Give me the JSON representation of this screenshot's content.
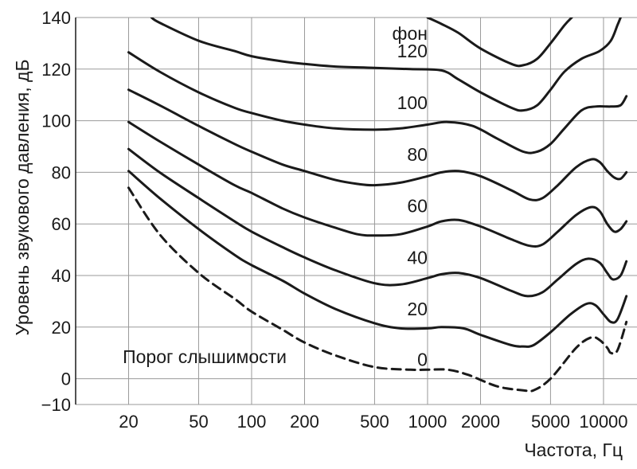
{
  "chart_data": {
    "type": "line",
    "xlabel": "Частота, Гц",
    "ylabel": "Уровень звукового давления, дБ",
    "x_scale": "log",
    "x_ticks": [
      20,
      50,
      100,
      200,
      500,
      1000,
      2000,
      5000,
      10000
    ],
    "x_tick_labels": [
      "20",
      "50",
      "100",
      "200",
      "500",
      "1000",
      "2000",
      "5000",
      "10000"
    ],
    "y_ticks": [
      -10,
      0,
      20,
      40,
      60,
      80,
      100,
      120,
      140
    ],
    "y_tick_labels": [
      "−10",
      "0",
      "20",
      "40",
      "60",
      "80",
      "100",
      "120",
      "140"
    ],
    "ylim": [
      -10,
      140
    ],
    "xlim": [
      10,
      15500
    ],
    "grid": true,
    "phon_unit": "фон",
    "threshold_label": "Порог слышимости",
    "series": [
      {
        "name": "0",
        "style": "dashed",
        "points": [
          [
            20,
            74
          ],
          [
            30,
            56
          ],
          [
            50,
            41
          ],
          [
            80,
            31
          ],
          [
            100,
            26
          ],
          [
            150,
            19
          ],
          [
            200,
            14
          ],
          [
            300,
            9
          ],
          [
            500,
            4.5
          ],
          [
            800,
            3.5
          ],
          [
            1000,
            3.5
          ],
          [
            1300,
            3.5
          ],
          [
            1700,
            1.5
          ],
          [
            2500,
            -3
          ],
          [
            3500,
            -4.5
          ],
          [
            4000,
            -4.5
          ],
          [
            5000,
            0
          ],
          [
            7000,
            12
          ],
          [
            8500,
            16
          ],
          [
            9500,
            15
          ],
          [
            10500,
            12
          ],
          [
            11000,
            10
          ],
          [
            12000,
            11
          ],
          [
            13500,
            22
          ]
        ]
      },
      {
        "name": "20",
        "style": "solid",
        "points": [
          [
            20,
            80.5
          ],
          [
            30,
            70
          ],
          [
            50,
            58
          ],
          [
            80,
            48
          ],
          [
            100,
            44
          ],
          [
            150,
            38
          ],
          [
            200,
            33
          ],
          [
            300,
            27
          ],
          [
            500,
            21.5
          ],
          [
            700,
            19.5
          ],
          [
            1000,
            19.5
          ],
          [
            1200,
            20
          ],
          [
            1600,
            19.5
          ],
          [
            2000,
            17
          ],
          [
            3000,
            13
          ],
          [
            3500,
            12.5
          ],
          [
            4000,
            13
          ],
          [
            5000,
            18
          ],
          [
            6500,
            25
          ],
          [
            8000,
            29
          ],
          [
            9000,
            28.5
          ],
          [
            10000,
            25
          ],
          [
            11000,
            22
          ],
          [
            12000,
            23
          ],
          [
            13500,
            32
          ]
        ]
      },
      {
        "name": "40",
        "style": "solid",
        "points": [
          [
            20,
            89
          ],
          [
            30,
            80
          ],
          [
            50,
            70
          ],
          [
            80,
            61
          ],
          [
            100,
            57
          ],
          [
            150,
            51
          ],
          [
            200,
            47
          ],
          [
            300,
            42
          ],
          [
            500,
            37
          ],
          [
            700,
            36.5
          ],
          [
            1000,
            39
          ],
          [
            1200,
            40.5
          ],
          [
            1500,
            41
          ],
          [
            2000,
            39
          ],
          [
            3000,
            34
          ],
          [
            3700,
            32
          ],
          [
            4500,
            33.5
          ],
          [
            5500,
            38.5
          ],
          [
            7000,
            44.5
          ],
          [
            8200,
            46.5
          ],
          [
            9500,
            45
          ],
          [
            10500,
            41
          ],
          [
            11300,
            38.5
          ],
          [
            12500,
            40
          ],
          [
            13500,
            45.5
          ]
        ]
      },
      {
        "name": "60",
        "style": "solid",
        "points": [
          [
            20,
            99.5
          ],
          [
            30,
            92
          ],
          [
            50,
            83
          ],
          [
            80,
            75
          ],
          [
            100,
            72
          ],
          [
            150,
            66
          ],
          [
            200,
            62.5
          ],
          [
            300,
            58.5
          ],
          [
            400,
            56
          ],
          [
            500,
            55.5
          ],
          [
            700,
            56
          ],
          [
            1000,
            59
          ],
          [
            1200,
            61
          ],
          [
            1500,
            61.5
          ],
          [
            2000,
            59
          ],
          [
            3000,
            54
          ],
          [
            3800,
            51.5
          ],
          [
            4500,
            52
          ],
          [
            5500,
            57
          ],
          [
            7000,
            63.5
          ],
          [
            8500,
            66.5
          ],
          [
            9500,
            65
          ],
          [
            10500,
            60
          ],
          [
            11500,
            57
          ],
          [
            12500,
            58
          ],
          [
            13500,
            61
          ]
        ]
      },
      {
        "name": "80",
        "style": "solid",
        "points": [
          [
            20,
            112
          ],
          [
            30,
            106
          ],
          [
            50,
            98
          ],
          [
            80,
            91
          ],
          [
            100,
            88
          ],
          [
            150,
            83
          ],
          [
            200,
            80.5
          ],
          [
            300,
            77
          ],
          [
            400,
            75.5
          ],
          [
            500,
            75
          ],
          [
            700,
            76
          ],
          [
            1000,
            78.5
          ],
          [
            1200,
            80
          ],
          [
            1500,
            80.5
          ],
          [
            2000,
            78.5
          ],
          [
            3000,
            73
          ],
          [
            3800,
            69.5
          ],
          [
            4500,
            70
          ],
          [
            5500,
            75
          ],
          [
            7000,
            82
          ],
          [
            8500,
            85
          ],
          [
            9500,
            84
          ],
          [
            10500,
            80.5
          ],
          [
            11500,
            78
          ],
          [
            12500,
            77.5
          ],
          [
            13500,
            80
          ]
        ]
      },
      {
        "name": "100",
        "style": "solid",
        "points": [
          [
            20,
            126.5
          ],
          [
            30,
            119
          ],
          [
            50,
            111
          ],
          [
            80,
            105
          ],
          [
            100,
            103
          ],
          [
            150,
            100
          ],
          [
            200,
            98.5
          ],
          [
            300,
            97
          ],
          [
            500,
            96.5
          ],
          [
            700,
            97
          ],
          [
            1000,
            98.5
          ],
          [
            1300,
            99.5
          ],
          [
            1800,
            98
          ],
          [
            2500,
            93
          ],
          [
            3500,
            88
          ],
          [
            4200,
            88
          ],
          [
            5000,
            91
          ],
          [
            6000,
            97
          ],
          [
            7500,
            104
          ],
          [
            9000,
            105.5
          ],
          [
            11000,
            105.5
          ],
          [
            12500,
            106
          ],
          [
            13500,
            109.5
          ]
        ]
      },
      {
        "name": "120",
        "style": "solid",
        "points": [
          [
            27,
            140
          ],
          [
            30,
            138
          ],
          [
            50,
            131
          ],
          [
            80,
            127
          ],
          [
            100,
            125
          ],
          [
            150,
            123
          ],
          [
            200,
            122
          ],
          [
            300,
            121
          ],
          [
            500,
            120.5
          ],
          [
            800,
            120
          ],
          [
            1200,
            119.5
          ],
          [
            1500,
            116
          ],
          [
            2000,
            111
          ],
          [
            3000,
            105
          ],
          [
            3500,
            104
          ],
          [
            4200,
            106
          ],
          [
            5000,
            112
          ],
          [
            6000,
            119
          ],
          [
            7500,
            124
          ],
          [
            9500,
            127
          ],
          [
            11000,
            131
          ],
          [
            12000,
            137
          ],
          [
            12500,
            140
          ]
        ]
      },
      {
        "name": "",
        "style": "solid",
        "points": [
          [
            1000,
            140
          ],
          [
            1200,
            137.5
          ],
          [
            1500,
            134
          ],
          [
            2000,
            128
          ],
          [
            3000,
            122
          ],
          [
            3500,
            121.5
          ],
          [
            4200,
            124
          ],
          [
            5000,
            130
          ],
          [
            6000,
            137
          ],
          [
            6600,
            140
          ]
        ]
      }
    ],
    "phon_labels": [
      {
        "text": "120",
        "x": 1000,
        "y": 124.5
      },
      {
        "text": "100",
        "x": 1000,
        "y": 104.5
      },
      {
        "text": "80",
        "x": 1000,
        "y": 84.5
      },
      {
        "text": "60",
        "x": 1000,
        "y": 64.5
      },
      {
        "text": "40",
        "x": 1000,
        "y": 44.5
      },
      {
        "text": "20",
        "x": 1000,
        "y": 24.5
      },
      {
        "text": "0",
        "x": 1000,
        "y": 5
      }
    ]
  }
}
